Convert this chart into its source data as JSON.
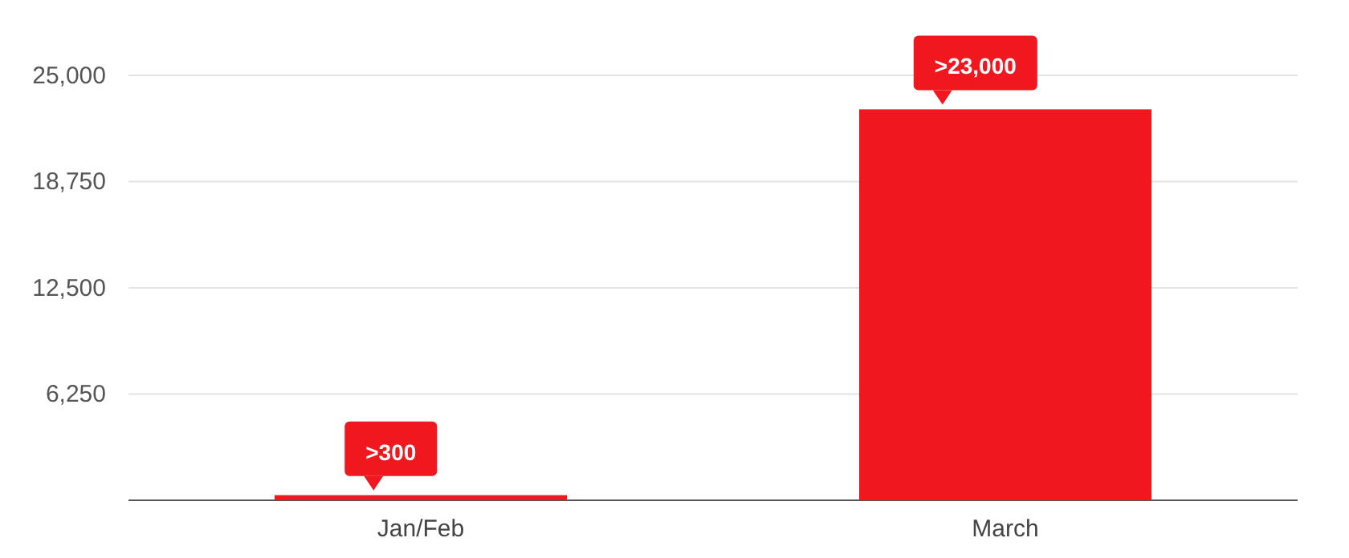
{
  "chart_data": {
    "type": "bar",
    "categories": [
      "Jan/Feb",
      "March"
    ],
    "values": [
      300,
      23000
    ],
    "value_labels": [
      ">300",
      ">23,000"
    ],
    "color": "#f1171f",
    "ylim": [
      0,
      25000
    ],
    "yticks": [
      {
        "value": 0,
        "label": null
      },
      {
        "value": 6250,
        "label": "6,250"
      },
      {
        "value": 12500,
        "label": "12,500"
      },
      {
        "value": 18750,
        "label": "18,750"
      },
      {
        "value": 25000,
        "label": "25,000"
      }
    ],
    "grid": "y"
  }
}
